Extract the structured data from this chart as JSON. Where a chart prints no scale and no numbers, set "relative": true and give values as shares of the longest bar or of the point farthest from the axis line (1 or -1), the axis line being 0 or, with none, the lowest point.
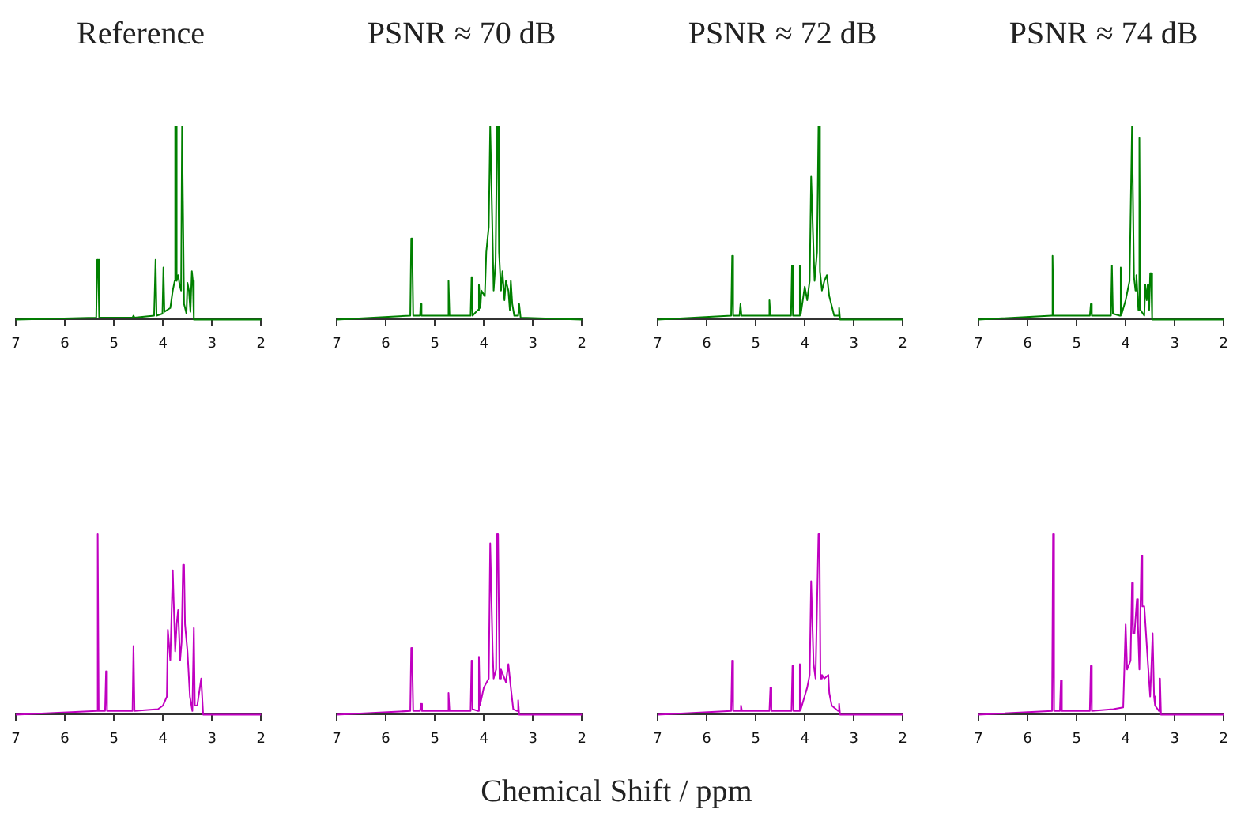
{
  "chart_data": [
    {
      "type": "line",
      "title": "Reference",
      "relative": true,
      "xlim": [
        7,
        2
      ],
      "xticks": [
        7,
        6,
        5,
        4,
        3,
        2
      ],
      "tick_labels": "x",
      "marker": "none",
      "color": "#008000",
      "x": [
        7,
        5.36,
        5.34,
        5.32,
        5.3,
        4.62,
        4.6,
        4.58,
        4.18,
        4.15,
        4.13,
        4.01,
        3.99,
        3.97,
        3.85,
        3.8,
        3.76,
        3.75,
        3.73,
        3.72,
        3.69,
        3.66,
        3.63,
        3.61,
        3.59,
        3.57,
        3.52,
        3.5,
        3.47,
        3.44,
        3.41,
        3.39,
        3.37,
        2
      ],
      "values": [
        0,
        0.01,
        0.31,
        0.31,
        0.01,
        0.01,
        0.02,
        0.01,
        0.02,
        0.31,
        0.02,
        0.03,
        0.27,
        0.04,
        0.06,
        0.15,
        0.2,
        1,
        1,
        0.2,
        0.23,
        0.18,
        0.15,
        1,
        1,
        0.08,
        0.03,
        0.19,
        0.15,
        0.04,
        0.25,
        0.2,
        0,
        0
      ]
    },
    {
      "type": "line",
      "title": "PSNR ≈ 70 dB",
      "relative": true,
      "xlim": [
        7,
        2
      ],
      "xticks": [
        7,
        6,
        5,
        4,
        3,
        2
      ],
      "tick_labels": "x",
      "marker": "none",
      "color": "#008000",
      "x": [
        7,
        5.5,
        5.48,
        5.46,
        5.44,
        5.3,
        5.29,
        5.27,
        4.74,
        4.72,
        4.7,
        4.27,
        4.25,
        4.23,
        4.12,
        4.1,
        4.07,
        4.05,
        3.98,
        3.95,
        3.9,
        3.87,
        3.85,
        3.82,
        3.8,
        3.76,
        3.73,
        3.71,
        3.69,
        3.65,
        3.62,
        3.58,
        3.55,
        3.5,
        3.47,
        3.45,
        3.42,
        3.38,
        3.3,
        3.28,
        3.25,
        2
      ],
      "values": [
        0,
        0.02,
        0.42,
        0.38,
        0.02,
        0.02,
        0.08,
        0.02,
        0.02,
        0.2,
        0.02,
        0.02,
        0.22,
        0.02,
        0.05,
        0.18,
        0.06,
        0.15,
        0.12,
        0.35,
        0.48,
        1,
        1,
        0.4,
        0.15,
        0.3,
        1,
        1,
        0.35,
        0.15,
        0.25,
        0.1,
        0.2,
        0.15,
        0.05,
        0.2,
        0.08,
        0.02,
        0.02,
        0.08,
        0.01,
        0
      ]
    },
    {
      "type": "line",
      "title": "PSNR ≈ 72 dB",
      "relative": true,
      "xlim": [
        7,
        2
      ],
      "xticks": [
        7,
        6,
        5,
        4,
        3,
        2
      ],
      "tick_labels": "x",
      "marker": "none",
      "color": "#008000",
      "x": [
        7,
        5.5,
        5.48,
        5.46,
        5.33,
        5.31,
        5.29,
        4.74,
        4.72,
        4.7,
        4.28,
        4.26,
        4.24,
        4.12,
        4.1,
        4.08,
        4.0,
        3.95,
        3.9,
        3.87,
        3.85,
        3.82,
        3.8,
        3.75,
        3.72,
        3.71,
        3.69,
        3.65,
        3.6,
        3.55,
        3.5,
        3.45,
        3.4,
        3.32,
        3.3,
        3.28,
        2
      ],
      "values": [
        0,
        0.02,
        0.33,
        0.02,
        0.02,
        0.08,
        0.02,
        0.02,
        0.1,
        0.02,
        0.02,
        0.28,
        0.02,
        0.02,
        0.28,
        0.03,
        0.17,
        0.1,
        0.2,
        0.74,
        0.74,
        0.35,
        0.2,
        0.35,
        1,
        1,
        0.25,
        0.15,
        0.2,
        0.23,
        0.12,
        0.07,
        0.02,
        0.02,
        0.06,
        0,
        0
      ]
    },
    {
      "type": "line",
      "title": "PSNR ≈ 74 dB",
      "relative": true,
      "xlim": [
        7,
        2
      ],
      "xticks": [
        7,
        6,
        5,
        4,
        3,
        2
      ],
      "tick_labels": "x",
      "marker": "none",
      "color": "#008000",
      "x": [
        7,
        5.51,
        5.49,
        5.47,
        4.73,
        4.71,
        4.69,
        4.3,
        4.28,
        4.26,
        4.12,
        4.1,
        4.08,
        4.0,
        3.92,
        3.87,
        3.85,
        3.83,
        3.8,
        3.78,
        3.74,
        3.72,
        3.7,
        3.62,
        3.6,
        3.57,
        3.55,
        3.52,
        3.5,
        3.48,
        3.46,
        2
      ],
      "values": [
        0,
        0.02,
        0.33,
        0.02,
        0.02,
        0.08,
        0.02,
        0.02,
        0.28,
        0.03,
        0.02,
        0.27,
        0.03,
        0.1,
        0.2,
        1,
        1,
        0.22,
        0.15,
        0.23,
        0.05,
        0.94,
        0.05,
        0.02,
        0.18,
        0.1,
        0.18,
        0.05,
        0.24,
        0.24,
        0,
        0
      ]
    },
    {
      "type": "line",
      "relative": true,
      "xlim": [
        7,
        2
      ],
      "xticks": [
        7,
        6,
        5,
        4,
        3,
        2
      ],
      "tick_labels": "x",
      "marker": "none",
      "color": "#c000c0",
      "x": [
        7,
        5.35,
        5.33,
        5.31,
        5.18,
        5.16,
        5.14,
        4.62,
        4.6,
        4.58,
        4.1,
        4.0,
        3.92,
        3.9,
        3.85,
        3.8,
        3.78,
        3.75,
        3.72,
        3.69,
        3.65,
        3.62,
        3.59,
        3.57,
        3.55,
        3.5,
        3.45,
        3.4,
        3.37,
        3.35,
        3.3,
        3.22,
        3.2,
        3.18,
        2
      ],
      "values": [
        0,
        0.02,
        1,
        0.02,
        0.02,
        0.24,
        0.02,
        0.02,
        0.38,
        0.02,
        0.03,
        0.05,
        0.1,
        0.47,
        0.3,
        0.8,
        0.8,
        0.35,
        0.5,
        0.58,
        0.3,
        0.4,
        0.83,
        0.83,
        0.5,
        0.35,
        0.1,
        0.02,
        0.48,
        0.05,
        0.05,
        0.2,
        0.2,
        0,
        0
      ]
    },
    {
      "type": "line",
      "relative": true,
      "xlim": [
        7,
        2
      ],
      "xticks": [
        7,
        6,
        5,
        4,
        3,
        2
      ],
      "tick_labels": "x",
      "xlabel": "Chemical Shift / ppm",
      "marker": "none",
      "color": "#c000c0",
      "x": [
        7,
        5.5,
        5.48,
        5.46,
        5.44,
        5.3,
        5.28,
        5.26,
        4.74,
        4.72,
        4.7,
        4.27,
        4.25,
        4.23,
        4.12,
        4.1,
        4.08,
        4.0,
        3.9,
        3.87,
        3.85,
        3.82,
        3.8,
        3.75,
        3.73,
        3.71,
        3.68,
        3.65,
        3.55,
        3.5,
        3.45,
        3.4,
        3.32,
        3.3,
        3.28,
        2
      ],
      "values": [
        0,
        0.02,
        0.37,
        0.3,
        0.02,
        0.02,
        0.06,
        0.02,
        0.02,
        0.12,
        0.02,
        0.02,
        0.3,
        0.03,
        0.02,
        0.32,
        0.05,
        0.15,
        0.2,
        0.95,
        0.95,
        0.35,
        0.2,
        0.25,
        1,
        1,
        0.2,
        0.25,
        0.18,
        0.28,
        0.15,
        0.03,
        0.02,
        0.08,
        0,
        0
      ]
    },
    {
      "type": "line",
      "relative": true,
      "xlim": [
        7,
        2
      ],
      "xticks": [
        7,
        6,
        5,
        4,
        3,
        2
      ],
      "tick_labels": "x",
      "marker": "none",
      "color": "#c000c0",
      "x": [
        7,
        5.5,
        5.48,
        5.46,
        5.32,
        5.3,
        5.28,
        4.72,
        4.7,
        4.68,
        4.27,
        4.25,
        4.23,
        4.12,
        4.1,
        4.08,
        3.95,
        3.9,
        3.87,
        3.85,
        3.82,
        3.78,
        3.72,
        3.7,
        3.68,
        3.65,
        3.6,
        3.52,
        3.5,
        3.45,
        3.32,
        3.3,
        3.28,
        2
      ],
      "values": [
        0,
        0.02,
        0.3,
        0.02,
        0.02,
        0.05,
        0.02,
        0.02,
        0.15,
        0.02,
        0.02,
        0.27,
        0.02,
        0.02,
        0.28,
        0.03,
        0.15,
        0.22,
        0.74,
        0.74,
        0.28,
        0.2,
        1,
        1,
        0.2,
        0.22,
        0.2,
        0.22,
        0.12,
        0.05,
        0.02,
        0.06,
        0,
        0
      ]
    },
    {
      "type": "line",
      "relative": true,
      "xlim": [
        7,
        2
      ],
      "xticks": [
        7,
        6,
        5,
        4,
        3,
        2
      ],
      "tick_labels": "x",
      "marker": "none",
      "color": "#c000c0",
      "x": [
        7,
        5.5,
        5.48,
        5.46,
        5.34,
        5.32,
        5.3,
        4.73,
        4.71,
        4.69,
        4.25,
        4.05,
        4.0,
        3.97,
        3.95,
        3.9,
        3.87,
        3.85,
        3.82,
        3.77,
        3.75,
        3.72,
        3.68,
        3.66,
        3.62,
        3.55,
        3.5,
        3.47,
        3.45,
        3.42,
        3.4,
        3.32,
        3.3,
        3.28,
        2
      ],
      "values": [
        0,
        0.02,
        1,
        0.02,
        0.02,
        0.19,
        0.02,
        0.02,
        0.27,
        0.02,
        0.03,
        0.04,
        0.5,
        0.25,
        0.25,
        0.3,
        0.73,
        0.45,
        0.45,
        0.64,
        0.5,
        0.25,
        0.88,
        0.6,
        0.6,
        0.3,
        0.1,
        0.3,
        0.45,
        0.1,
        0.05,
        0.02,
        0.2,
        0,
        0
      ]
    }
  ]
}
